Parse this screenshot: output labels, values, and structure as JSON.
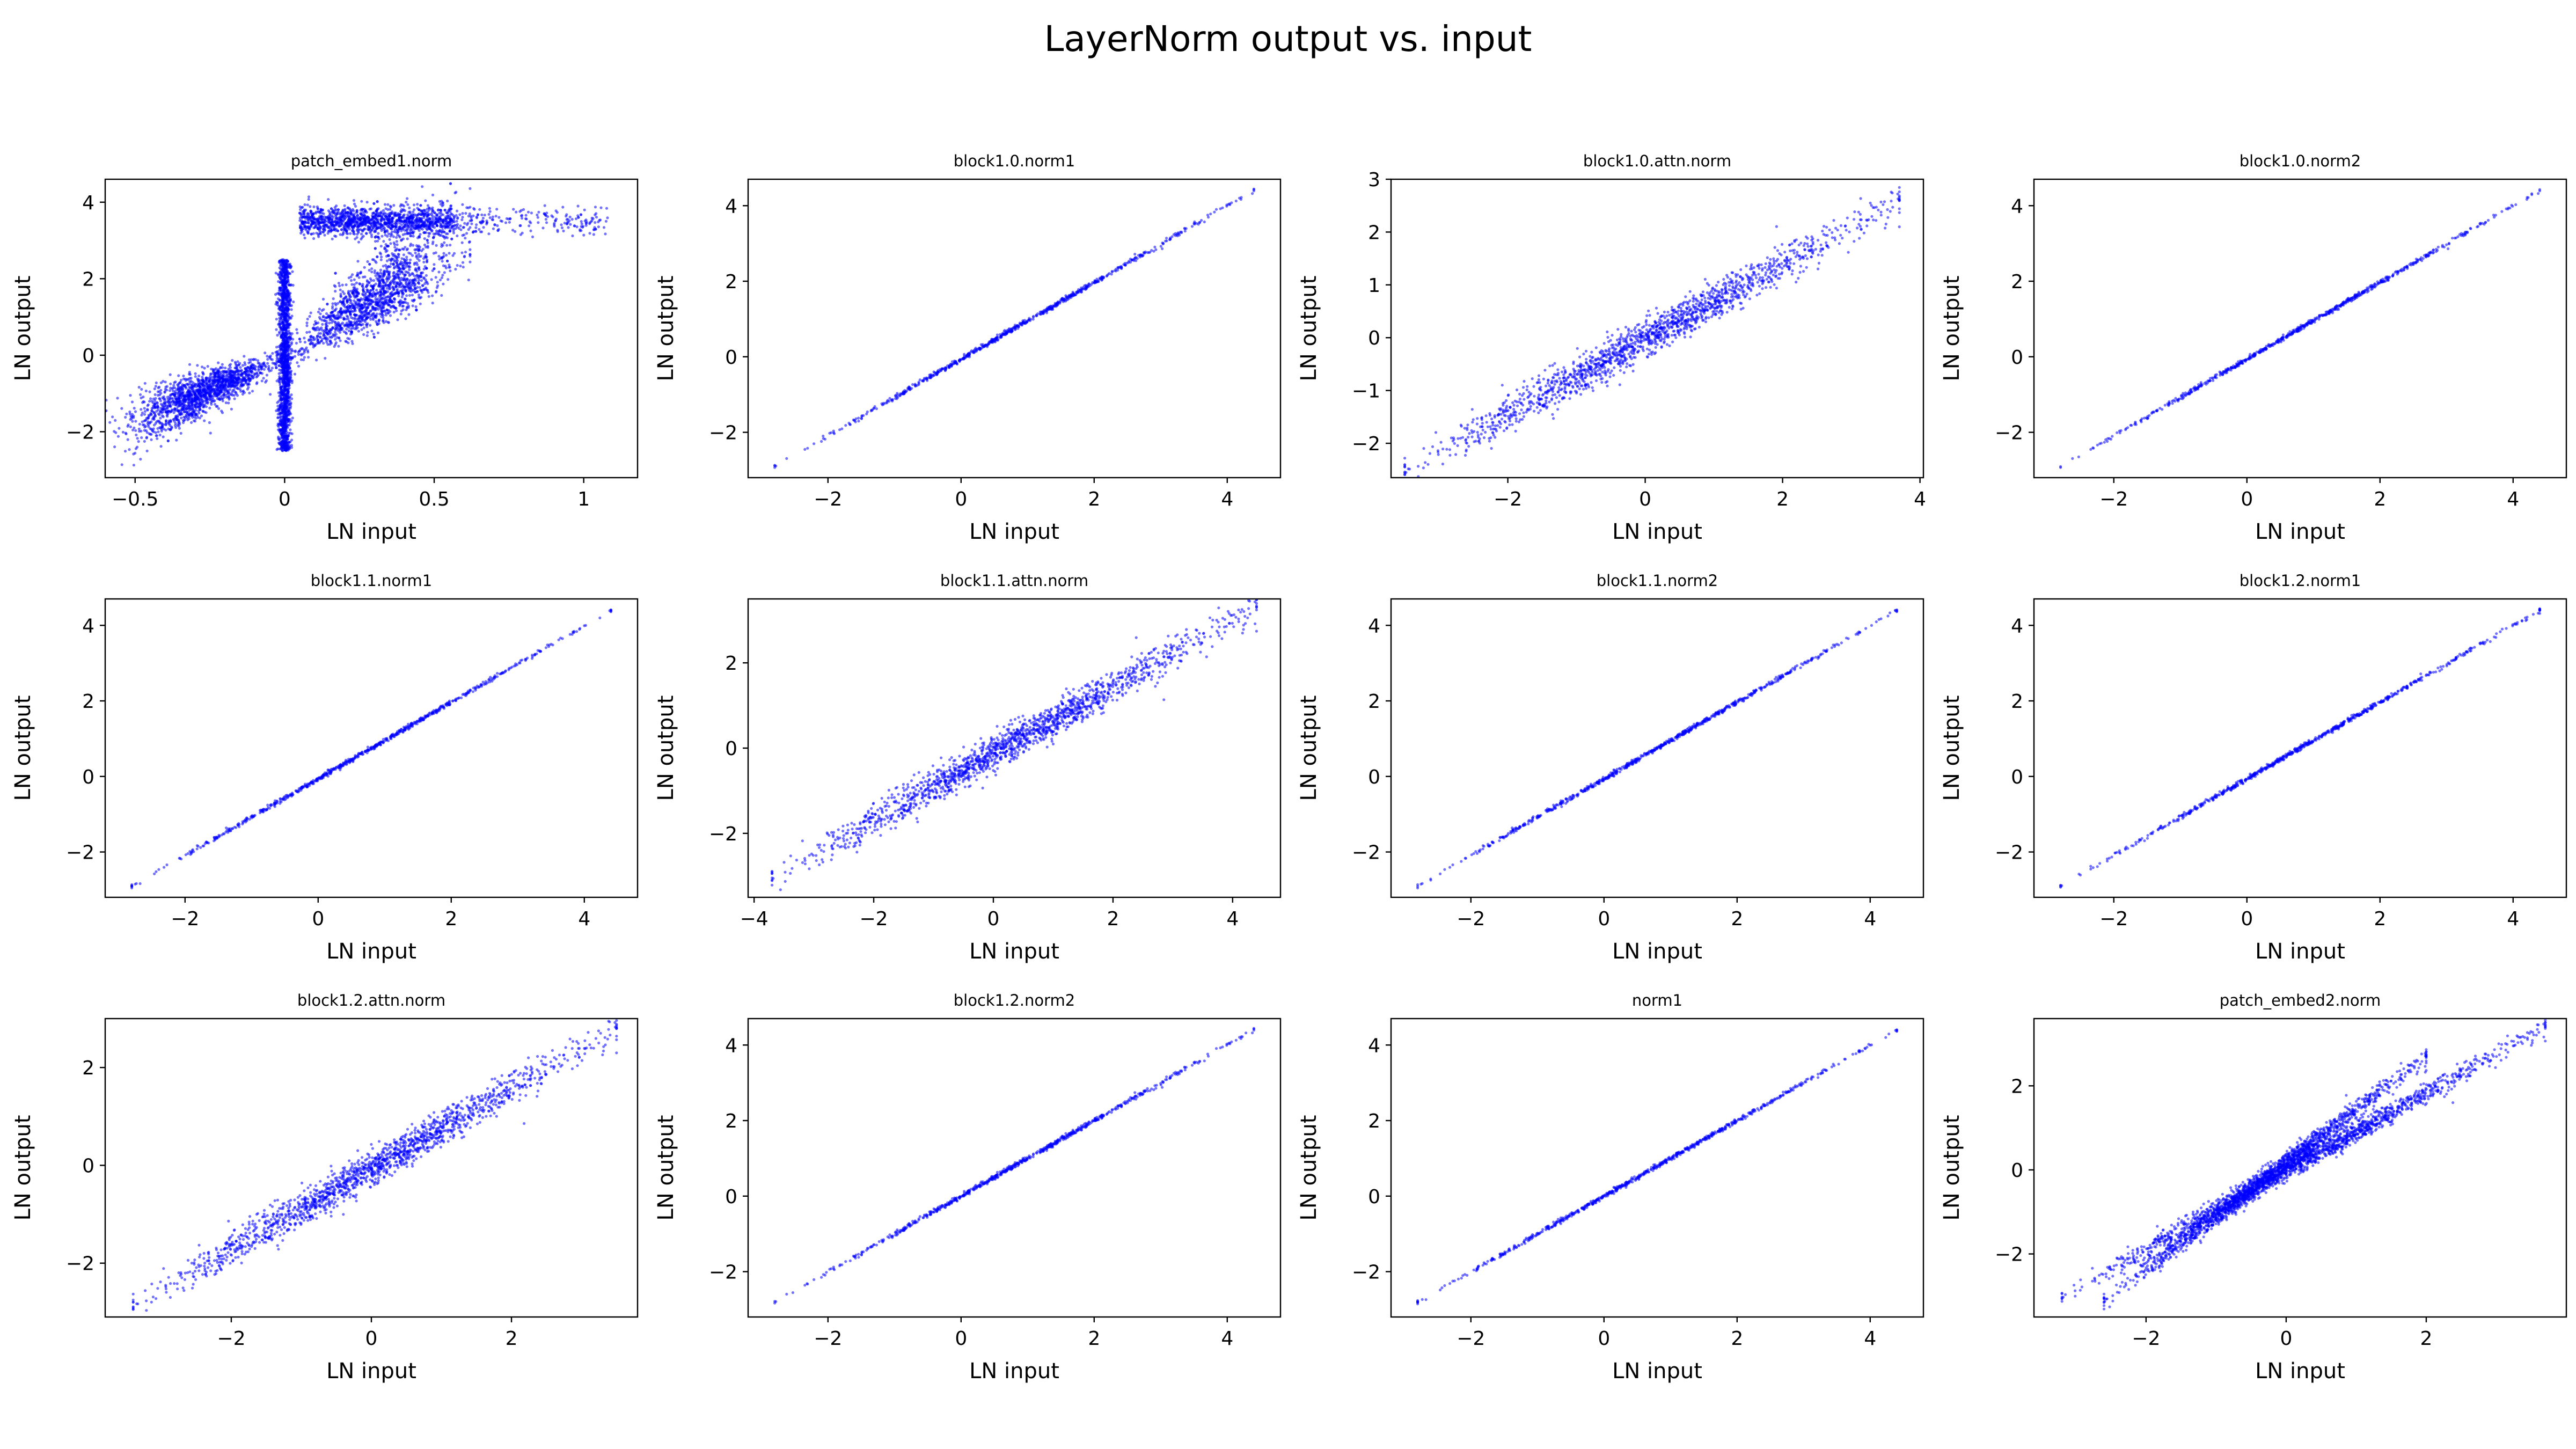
{
  "figure": {
    "title": "LayerNorm output vs. input",
    "point_color": "#0000ff"
  },
  "chart_data": [
    {
      "type": "scatter",
      "title": "patch_embed1.norm",
      "xlabel": "LN input",
      "ylabel": "LN output",
      "xlim": [
        -0.6,
        1.18
      ],
      "ylim": [
        -3.2,
        4.6
      ],
      "xticks": [
        -0.5,
        0.0,
        0.5,
        1.0
      ],
      "yticks": [
        -2,
        0,
        2,
        4
      ],
      "pattern": "patch_embed1",
      "segments": [
        {
          "x": [
            -0.55,
            0.0
          ],
          "y": [
            -2.0,
            0.0
          ],
          "spread": 0.7
        },
        {
          "x": [
            0.0,
            0.62
          ],
          "y": [
            0.0,
            2.1
          ],
          "spread": 1.4
        },
        {
          "x": [
            0.0,
            0.0
          ],
          "y": [
            -2.5,
            2.5
          ],
          "spread": 0.02
        },
        {
          "x": [
            0.05,
            1.08
          ],
          "y": [
            3.5,
            3.6
          ],
          "spread": 0.5
        }
      ]
    },
    {
      "type": "scatter",
      "title": "block1.0.norm1",
      "xlabel": "LN input",
      "ylabel": "LN output",
      "xlim": [
        -3.2,
        4.8
      ],
      "ylim": [
        -3.2,
        4.7
      ],
      "xticks": [
        -2,
        0,
        2,
        4
      ],
      "yticks": [
        -2,
        0,
        2,
        4
      ],
      "pattern": "line",
      "segments": [
        {
          "x": [
            -2.8,
            4.4
          ],
          "y": [
            -2.9,
            4.4
          ],
          "spread": 0.03
        }
      ]
    },
    {
      "type": "scatter",
      "title": "block1.0.attn.norm",
      "xlabel": "LN input",
      "ylabel": "LN output",
      "xlim": [
        -3.7,
        4.05
      ],
      "ylim": [
        -2.65,
        3.0
      ],
      "xticks": [
        -2,
        0,
        2,
        4
      ],
      "yticks": [
        -2,
        -1,
        0,
        1,
        2,
        3
      ],
      "pattern": "band",
      "segments": [
        {
          "x": [
            -3.5,
            3.7
          ],
          "y": [
            -2.5,
            2.6
          ],
          "spread": 0.18
        }
      ]
    },
    {
      "type": "scatter",
      "title": "block1.0.norm2",
      "xlabel": "LN input",
      "ylabel": "LN output",
      "xlim": [
        -3.2,
        4.8
      ],
      "ylim": [
        -3.2,
        4.7
      ],
      "xticks": [
        -2,
        0,
        2,
        4
      ],
      "yticks": [
        -2,
        0,
        2,
        4
      ],
      "pattern": "line",
      "segments": [
        {
          "x": [
            -2.8,
            4.4
          ],
          "y": [
            -2.9,
            4.4
          ],
          "spread": 0.03
        }
      ]
    },
    {
      "type": "scatter",
      "title": "block1.1.norm1",
      "xlabel": "LN input",
      "ylabel": "LN output",
      "xlim": [
        -3.2,
        4.8
      ],
      "ylim": [
        -3.2,
        4.7
      ],
      "xticks": [
        -2,
        0,
        2,
        4
      ],
      "yticks": [
        -2,
        0,
        2,
        4
      ],
      "pattern": "line",
      "segments": [
        {
          "x": [
            -2.8,
            4.4
          ],
          "y": [
            -2.9,
            4.4
          ],
          "spread": 0.03
        }
      ]
    },
    {
      "type": "scatter",
      "title": "block1.1.attn.norm",
      "xlabel": "LN input",
      "ylabel": "LN output",
      "xlim": [
        -4.1,
        4.8
      ],
      "ylim": [
        -3.5,
        3.5
      ],
      "xticks": [
        -4,
        -2,
        0,
        2,
        4
      ],
      "yticks": [
        -2,
        0,
        2
      ],
      "pattern": "band",
      "segments": [
        {
          "x": [
            -3.7,
            4.4
          ],
          "y": [
            -3.0,
            3.3
          ],
          "spread": 0.2
        }
      ]
    },
    {
      "type": "scatter",
      "title": "block1.1.norm2",
      "xlabel": "LN input",
      "ylabel": "LN output",
      "xlim": [
        -3.2,
        4.8
      ],
      "ylim": [
        -3.2,
        4.7
      ],
      "xticks": [
        -2,
        0,
        2,
        4
      ],
      "yticks": [
        -2,
        0,
        2,
        4
      ],
      "pattern": "line",
      "segments": [
        {
          "x": [
            -2.8,
            4.4
          ],
          "y": [
            -2.9,
            4.4
          ],
          "spread": 0.03
        }
      ]
    },
    {
      "type": "scatter",
      "title": "block1.2.norm1",
      "xlabel": "LN input",
      "ylabel": "LN output",
      "xlim": [
        -3.2,
        4.8
      ],
      "ylim": [
        -3.2,
        4.7
      ],
      "xticks": [
        -2,
        0,
        2,
        4
      ],
      "yticks": [
        -2,
        0,
        2,
        4
      ],
      "pattern": "line",
      "segments": [
        {
          "x": [
            -2.8,
            4.4
          ],
          "y": [
            -2.9,
            4.4
          ],
          "spread": 0.03
        }
      ]
    },
    {
      "type": "scatter",
      "title": "block1.2.attn.norm",
      "xlabel": "LN input",
      "ylabel": "LN output",
      "xlim": [
        -3.8,
        3.8
      ],
      "ylim": [
        -3.1,
        3.0
      ],
      "xticks": [
        -2,
        0,
        2
      ],
      "yticks": [
        -2,
        0,
        2
      ],
      "pattern": "band",
      "segments": [
        {
          "x": [
            -3.4,
            3.5
          ],
          "y": [
            -2.85,
            2.8
          ],
          "spread": 0.18
        }
      ]
    },
    {
      "type": "scatter",
      "title": "block1.2.norm2",
      "xlabel": "LN input",
      "ylabel": "LN output",
      "xlim": [
        -3.2,
        4.8
      ],
      "ylim": [
        -3.2,
        4.7
      ],
      "xticks": [
        -2,
        0,
        2,
        4
      ],
      "yticks": [
        -2,
        0,
        2,
        4
      ],
      "pattern": "line",
      "segments": [
        {
          "x": [
            -2.8,
            4.4
          ],
          "y": [
            -2.8,
            4.4
          ],
          "spread": 0.03
        }
      ]
    },
    {
      "type": "scatter",
      "title": "norm1",
      "xlabel": "LN input",
      "ylabel": "LN output",
      "xlim": [
        -3.2,
        4.8
      ],
      "ylim": [
        -3.2,
        4.7
      ],
      "xticks": [
        -2,
        0,
        2,
        4
      ],
      "yticks": [
        -2,
        0,
        2,
        4
      ],
      "pattern": "line",
      "segments": [
        {
          "x": [
            -2.8,
            4.4
          ],
          "y": [
            -2.8,
            4.4
          ],
          "spread": 0.03
        }
      ]
    },
    {
      "type": "scatter",
      "title": "patch_embed2.norm",
      "xlabel": "LN input",
      "ylabel": "LN output",
      "xlim": [
        -3.6,
        4.0
      ],
      "ylim": [
        -3.5,
        3.6
      ],
      "xticks": [
        -2,
        0,
        2
      ],
      "yticks": [
        -2,
        0,
        2
      ],
      "pattern": "two-bands",
      "segments": [
        {
          "x": [
            -3.2,
            3.7
          ],
          "y": [
            -3.0,
            3.4
          ],
          "spread": 0.12
        },
        {
          "x": [
            -2.6,
            2.0
          ],
          "y": [
            -3.1,
            2.7
          ],
          "spread": 0.12
        }
      ]
    }
  ]
}
